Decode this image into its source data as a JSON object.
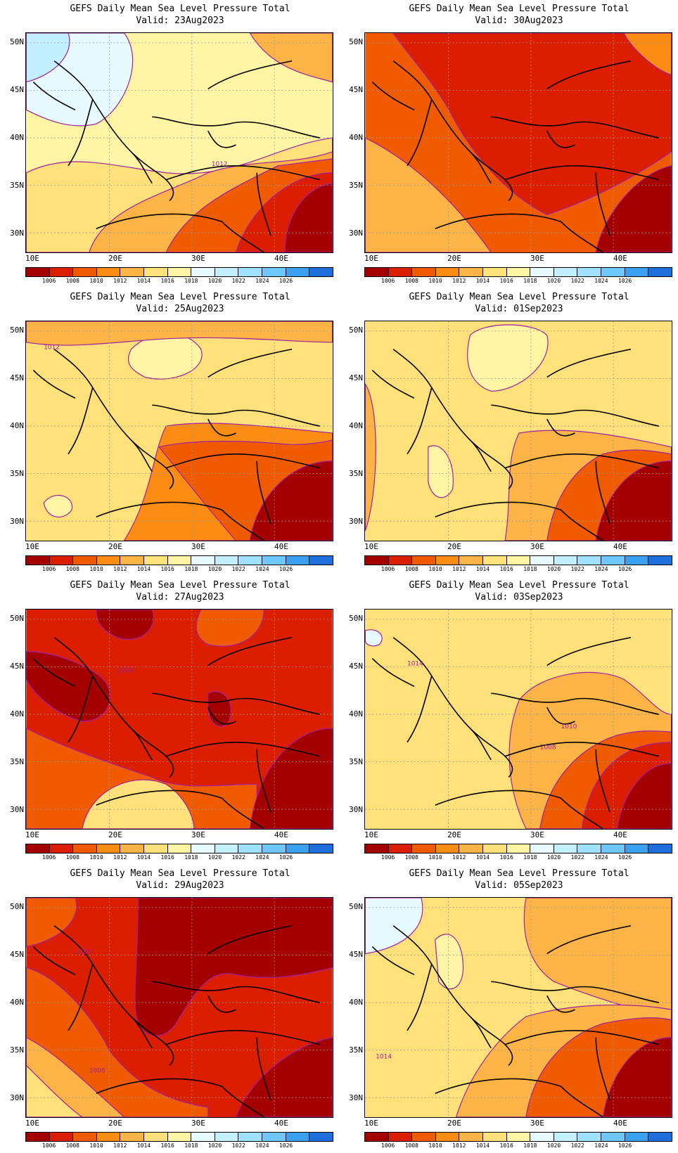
{
  "title_line1": "GEFS Daily Mean Sea Level Pressure Total",
  "valid_prefix": "Valid:",
  "lat_labels": [
    "50N",
    "45N",
    "40N",
    "35N",
    "30N"
  ],
  "lon_labels": [
    "10E",
    "20E",
    "30E",
    "40E"
  ],
  "colorbar": {
    "colors": [
      "#a50000",
      "#dc1e00",
      "#f05a00",
      "#fa8c14",
      "#fdb446",
      "#fee17a",
      "#fff5a5",
      "#e6faff",
      "#c3f0ff",
      "#a0e1ff",
      "#6ec8ff",
      "#3ca0f0",
      "#1e6edc"
    ],
    "labels": [
      "1006",
      "1008",
      "1010",
      "1012",
      "1014",
      "1016",
      "1018",
      "1020",
      "1022",
      "1024",
      "1026"
    ]
  },
  "panels": [
    {
      "valid": "23Aug2023",
      "contour_labels": [
        "1012"
      ],
      "base_level": "#fff5a5"
    },
    {
      "valid": "30Aug2023",
      "contour_labels": [],
      "base_level": "#f05a00"
    },
    {
      "valid": "25Aug2023",
      "contour_labels": [
        "1012"
      ],
      "base_level": "#fee17a"
    },
    {
      "valid": "01Sep2023",
      "contour_labels": [],
      "base_level": "#fee17a"
    },
    {
      "valid": "27Aug2023",
      "contour_labels": [
        "1008"
      ],
      "base_level": "#dc1e00"
    },
    {
      "valid": "03Sep2023",
      "contour_labels": [
        "1014",
        "1010",
        "1008"
      ],
      "base_level": "#fee17a"
    },
    {
      "valid": "29Aug2023",
      "contour_labels": [
        "1008",
        "1008"
      ],
      "base_level": "#dc1e00"
    },
    {
      "valid": "05Sep2023",
      "contour_labels": [
        "1014"
      ],
      "base_level": "#fee17a"
    }
  ]
}
